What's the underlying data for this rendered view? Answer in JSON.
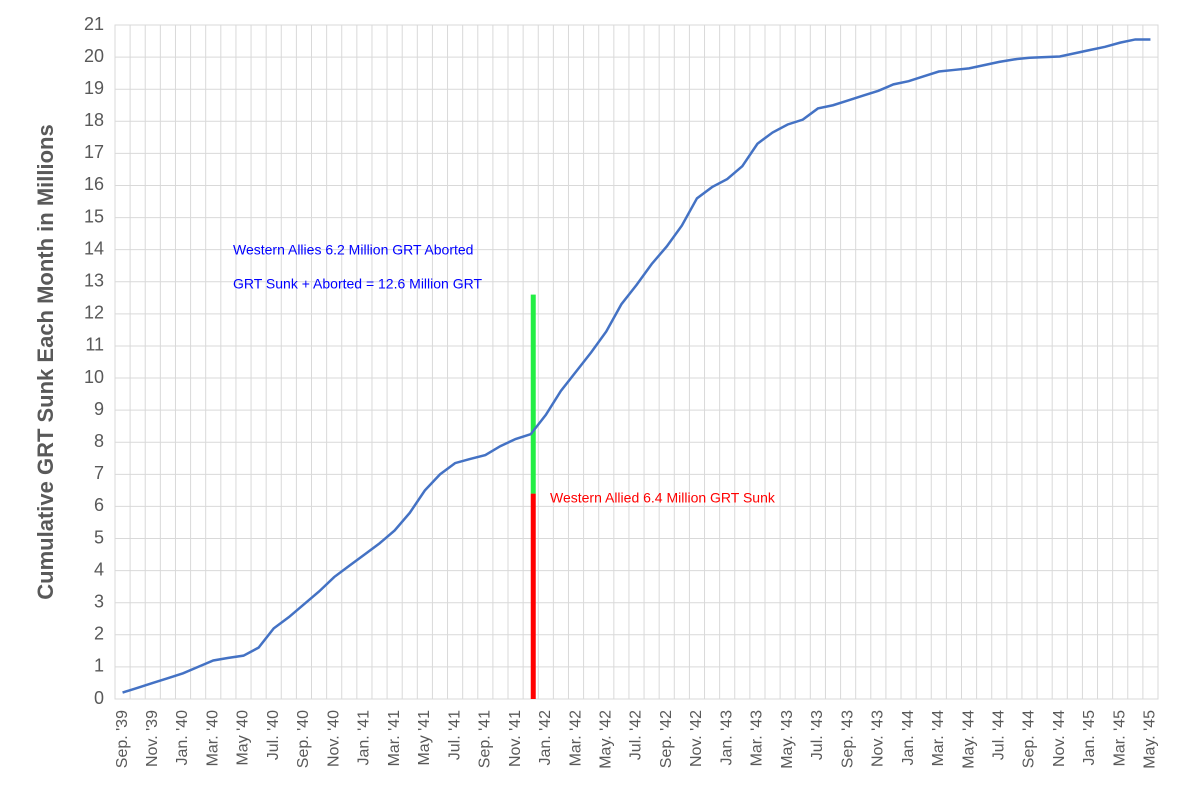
{
  "chart_data": {
    "type": "line",
    "y_label": "Cumulative GRT Sunk Each Month in Millions",
    "categories": [
      "Sep. '39",
      null,
      "Nov. '39",
      null,
      "Jan. '40",
      null,
      "Mar. '40",
      null,
      "May '40",
      null,
      "Jul. '40",
      null,
      "Sep. '40",
      null,
      "Nov. '40",
      null,
      "Jan. '41",
      null,
      "Mar. '41",
      null,
      "May '41",
      null,
      "Jul. '41",
      null,
      "Sep. '41",
      null,
      "Nov. '41",
      null,
      "Jan. '42",
      null,
      "Mar. '42",
      null,
      "May. '42",
      null,
      "Jul. '42",
      null,
      "Sep. '42",
      null,
      "Nov. '42",
      null,
      "Jan. '43",
      null,
      "Mar. '43",
      null,
      "May. '43",
      null,
      "Jul. '43",
      null,
      "Sep. '43",
      null,
      "Nov. '43",
      null,
      "Jan. '44",
      null,
      "Mar. '44",
      null,
      "May. '44",
      null,
      "Jul. '44",
      null,
      "Sep. '44",
      null,
      "Nov. '44",
      null,
      "Jan. '45",
      null,
      "Mar. '45",
      null,
      "May. '45"
    ],
    "series": [
      {
        "color": "#4472c4",
        "values": [
          0.2,
          0.35,
          0.5,
          0.65,
          0.8,
          1.0,
          1.2,
          1.28,
          1.35,
          1.6,
          2.2,
          2.55,
          2.95,
          3.35,
          3.8,
          4.15,
          4.5,
          4.85,
          5.25,
          5.8,
          6.5,
          7.0,
          7.35,
          7.48,
          7.6,
          7.88,
          8.1,
          8.25,
          8.85,
          9.6,
          10.2,
          10.8,
          11.45,
          12.3,
          12.9,
          13.55,
          14.1,
          14.75,
          15.6,
          15.95,
          16.2,
          16.6,
          17.3,
          17.65,
          17.9,
          18.05,
          18.4,
          18.5,
          18.65,
          18.8,
          18.95,
          19.15,
          19.25,
          19.4,
          19.55,
          19.6,
          19.65,
          19.75,
          19.85,
          19.93,
          19.98,
          20.0,
          20.02,
          20.12,
          20.22,
          20.32,
          20.45,
          20.55,
          20.55
        ]
      }
    ],
    "stack_bars": [
      {
        "value": 6.4,
        "color": "#ff0000"
      },
      {
        "value": 6.2,
        "color": "#22ee44"
      }
    ],
    "annotations": [
      {
        "text": "Western Allies 6.2 Million GRT Aborted",
        "color": "#0000ff"
      },
      {
        "text": "GRT Sunk + Aborted = 12.6 Million GRT",
        "color": "#0000ff"
      },
      {
        "text": "Western Allied 6.4 Million GRT Sunk",
        "color": "#ff0000"
      }
    ],
    "ylim": [
      0,
      21
    ],
    "yticks": [
      0,
      1,
      2,
      3,
      4,
      5,
      6,
      7,
      8,
      9,
      10,
      11,
      12,
      13,
      14,
      15,
      16,
      17,
      18,
      19,
      20,
      21
    ],
    "grid": true
  }
}
